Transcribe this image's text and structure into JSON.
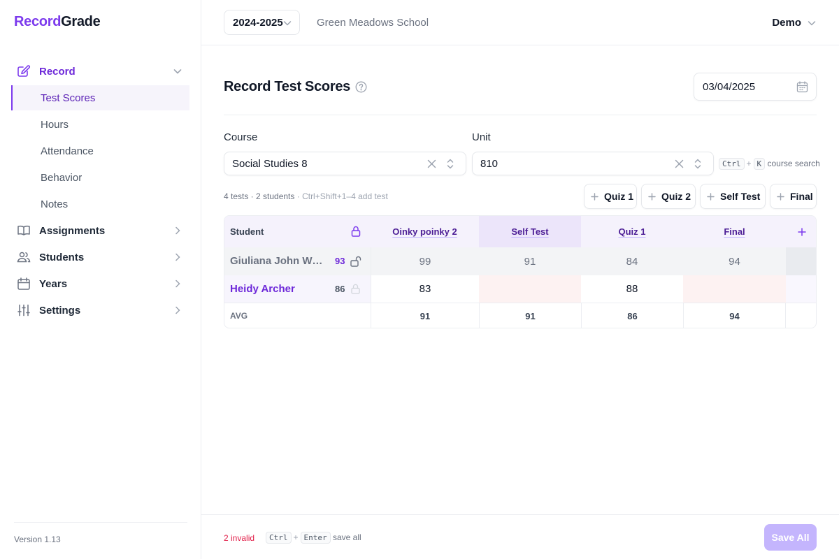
{
  "app": {
    "brand_part1": "Record",
    "brand_part2": "Grade",
    "version": "Version 1.13"
  },
  "topbar": {
    "year": "2024-2025",
    "school": "Green Meadows School",
    "user": "Demo"
  },
  "sidebar": {
    "record": {
      "label": "Record",
      "icon": "pencil-square-icon"
    },
    "record_items": [
      {
        "label": "Test Scores",
        "selected": true
      },
      {
        "label": "Hours"
      },
      {
        "label": "Attendance"
      },
      {
        "label": "Behavior"
      },
      {
        "label": "Notes"
      }
    ],
    "sections": [
      {
        "label": "Assignments",
        "icon": "book-icon"
      },
      {
        "label": "Students",
        "icon": "users-icon"
      },
      {
        "label": "Years",
        "icon": "calendar-icon"
      },
      {
        "label": "Settings",
        "icon": "sliders-icon"
      }
    ]
  },
  "page": {
    "title": "Record Test Scores",
    "date": "03/04/2025"
  },
  "filters": {
    "course_label": "Course",
    "course_value": "Social Studies 8",
    "unit_label": "Unit",
    "unit_value": "810",
    "search_hint": {
      "key1": "Ctrl",
      "plus": "+",
      "key2": "K",
      "text": "course search"
    }
  },
  "summary": {
    "counts": "4 tests · 2 students",
    "hint": "· Ctrl+Shift+1–4 add test"
  },
  "add_buttons": [
    "Quiz 1",
    "Quiz 2",
    "Self Test",
    "Final"
  ],
  "table": {
    "student_header": "Student",
    "columns": [
      "Oinky poinky 2",
      "Self Test",
      "Quiz 1",
      "Final"
    ],
    "rows": [
      {
        "name": "Giuliana John Wil...",
        "avg": "93",
        "scores": [
          "99",
          "91",
          "84",
          "94"
        ],
        "locked": false
      },
      {
        "name": "Heidy Archer",
        "avg": "86",
        "scores": [
          "83",
          "",
          "88",
          ""
        ],
        "locked": true
      }
    ],
    "avg_label": "AVG",
    "averages": [
      "91",
      "91",
      "86",
      "94"
    ]
  },
  "footer": {
    "invalid": "2 invalid",
    "key1": "Ctrl",
    "plus": "+",
    "key2": "Enter",
    "text": "save all",
    "save_label": "Save All"
  },
  "colors": {
    "accent": "#7c3aed",
    "invalid": "#e11d48",
    "save_disabled": "#c4b5fd"
  }
}
